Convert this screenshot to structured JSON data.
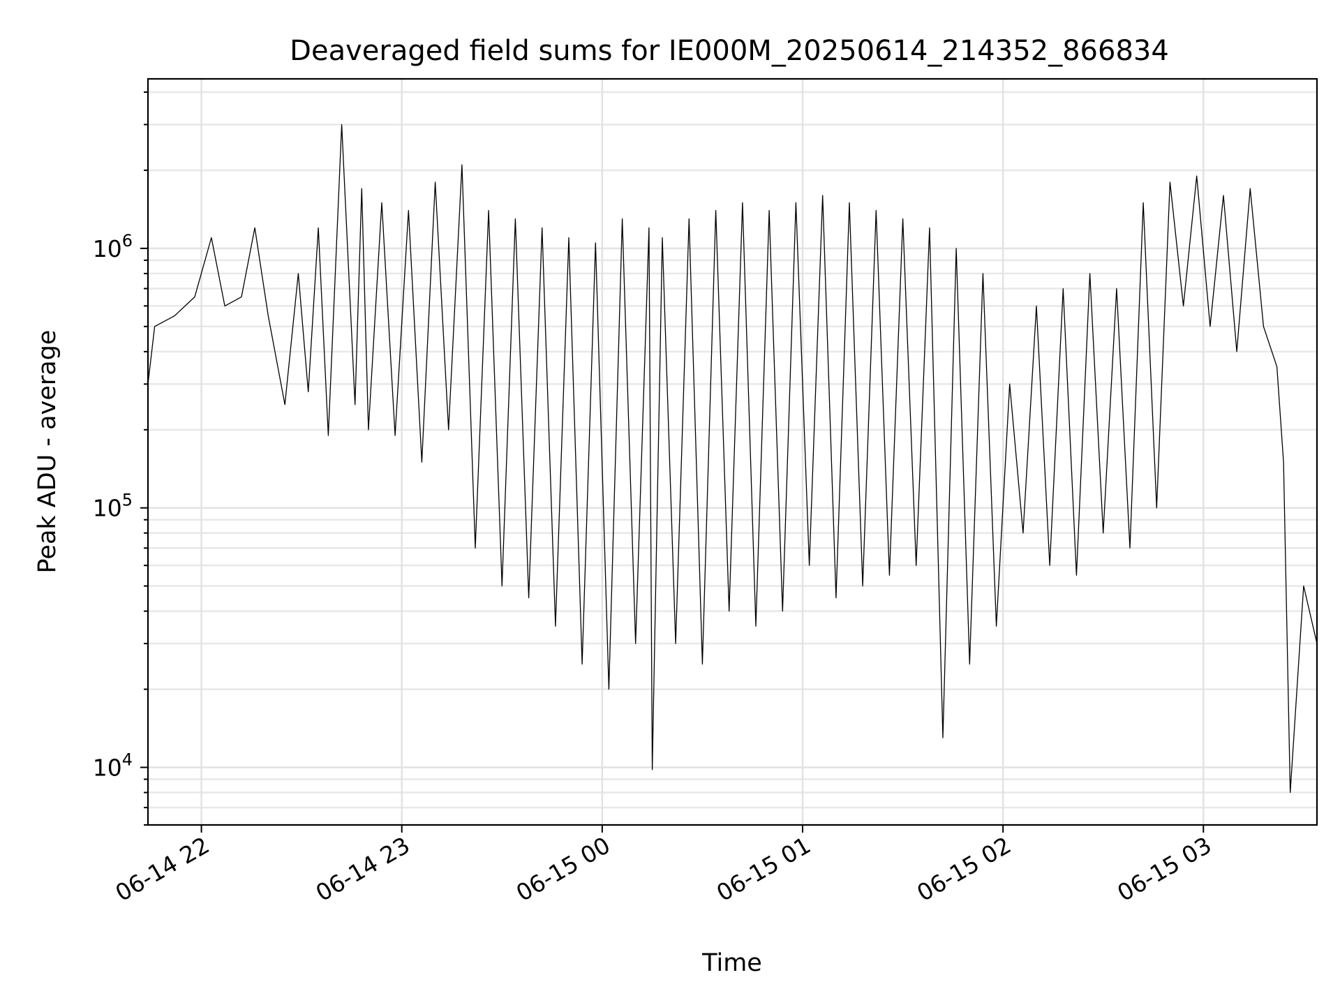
{
  "chart_data": {
    "type": "line",
    "title": "Deaveraged field sums for IE000M_20250614_214352_866834",
    "xlabel": "Time",
    "ylabel": "Peak ADU - average",
    "yscale": "log",
    "ylim": [
      6000,
      4500000
    ],
    "xlim": [
      "2025-06-14 21:44",
      "2025-06-15 03:34"
    ],
    "grid": true,
    "grid_minor_y": true,
    "line_color": "#000000",
    "x_ticks": [
      {
        "value": "2025-06-14 22:00",
        "label": "06-14 22"
      },
      {
        "value": "2025-06-14 23:00",
        "label": "06-14 23"
      },
      {
        "value": "2025-06-15 00:00",
        "label": "06-15 00"
      },
      {
        "value": "2025-06-15 01:00",
        "label": "06-15 01"
      },
      {
        "value": "2025-06-15 02:00",
        "label": "06-15 02"
      },
      {
        "value": "2025-06-15 03:00",
        "label": "06-15 03"
      }
    ],
    "y_ticks": [
      {
        "value": 10000,
        "base": "10",
        "exp": "4"
      },
      {
        "value": 100000,
        "base": "10",
        "exp": "5"
      },
      {
        "value": 1000000,
        "base": "10",
        "exp": "6"
      }
    ],
    "series": [
      {
        "x": [
          "2025-06-14 21:44",
          "2025-06-14 21:46",
          "2025-06-14 21:52",
          "2025-06-14 21:58",
          "2025-06-14 22:03",
          "2025-06-14 22:07",
          "2025-06-14 22:12",
          "2025-06-14 22:16",
          "2025-06-14 22:20",
          "2025-06-14 22:25",
          "2025-06-14 22:29",
          "2025-06-14 22:32",
          "2025-06-14 22:35",
          "2025-06-14 22:38",
          "2025-06-14 22:42",
          "2025-06-14 22:46",
          "2025-06-14 22:48",
          "2025-06-14 22:50",
          "2025-06-14 22:54",
          "2025-06-14 22:58",
          "2025-06-14 23:02",
          "2025-06-14 23:06",
          "2025-06-14 23:10",
          "2025-06-14 23:14",
          "2025-06-14 23:18",
          "2025-06-14 23:22",
          "2025-06-14 23:26",
          "2025-06-14 23:30",
          "2025-06-14 23:34",
          "2025-06-14 23:38",
          "2025-06-14 23:42",
          "2025-06-14 23:46",
          "2025-06-14 23:50",
          "2025-06-14 23:54",
          "2025-06-14 23:58",
          "2025-06-15 00:02",
          "2025-06-15 00:06",
          "2025-06-15 00:10",
          "2025-06-15 00:14",
          "2025-06-15 00:15",
          "2025-06-15 00:18",
          "2025-06-15 00:22",
          "2025-06-15 00:26",
          "2025-06-15 00:30",
          "2025-06-15 00:34",
          "2025-06-15 00:38",
          "2025-06-15 00:42",
          "2025-06-15 00:46",
          "2025-06-15 00:50",
          "2025-06-15 00:54",
          "2025-06-15 00:58",
          "2025-06-15 01:02",
          "2025-06-15 01:06",
          "2025-06-15 01:10",
          "2025-06-15 01:14",
          "2025-06-15 01:18",
          "2025-06-15 01:22",
          "2025-06-15 01:26",
          "2025-06-15 01:30",
          "2025-06-15 01:34",
          "2025-06-15 01:38",
          "2025-06-15 01:42",
          "2025-06-15 01:46",
          "2025-06-15 01:50",
          "2025-06-15 01:54",
          "2025-06-15 01:58",
          "2025-06-15 02:02",
          "2025-06-15 02:06",
          "2025-06-15 02:10",
          "2025-06-15 02:14",
          "2025-06-15 02:18",
          "2025-06-15 02:22",
          "2025-06-15 02:26",
          "2025-06-15 02:30",
          "2025-06-15 02:34",
          "2025-06-15 02:38",
          "2025-06-15 02:42",
          "2025-06-15 02:46",
          "2025-06-15 02:50",
          "2025-06-15 02:54",
          "2025-06-15 02:58",
          "2025-06-15 03:02",
          "2025-06-15 03:06",
          "2025-06-15 03:10",
          "2025-06-15 03:14",
          "2025-06-15 03:18",
          "2025-06-15 03:22",
          "2025-06-15 03:24",
          "2025-06-15 03:26",
          "2025-06-15 03:30",
          "2025-06-15 03:34"
        ],
        "y": [
          300000,
          500000,
          550000,
          650000,
          1100000,
          600000,
          650000,
          1200000,
          550000,
          250000,
          800000,
          280000,
          1200000,
          190000,
          3000000,
          250000,
          1700000,
          200000,
          1500000,
          190000,
          1400000,
          150000,
          1800000,
          200000,
          2100000,
          70000,
          1400000,
          50000,
          1300000,
          45000,
          1200000,
          35000,
          1100000,
          25000,
          1050000,
          20000,
          1300000,
          30000,
          1200000,
          9800,
          1100000,
          30000,
          1300000,
          25000,
          1400000,
          40000,
          1500000,
          35000,
          1400000,
          40000,
          1500000,
          60000,
          1600000,
          45000,
          1500000,
          50000,
          1400000,
          55000,
          1300000,
          60000,
          1200000,
          13000,
          1000000,
          25000,
          800000,
          35000,
          300000,
          80000,
          600000,
          60000,
          700000,
          55000,
          800000,
          80000,
          700000,
          70000,
          1500000,
          100000,
          1800000,
          600000,
          1900000,
          500000,
          1600000,
          400000,
          1700000,
          500000,
          350000,
          150000,
          8000,
          50000,
          30000
        ]
      }
    ]
  }
}
